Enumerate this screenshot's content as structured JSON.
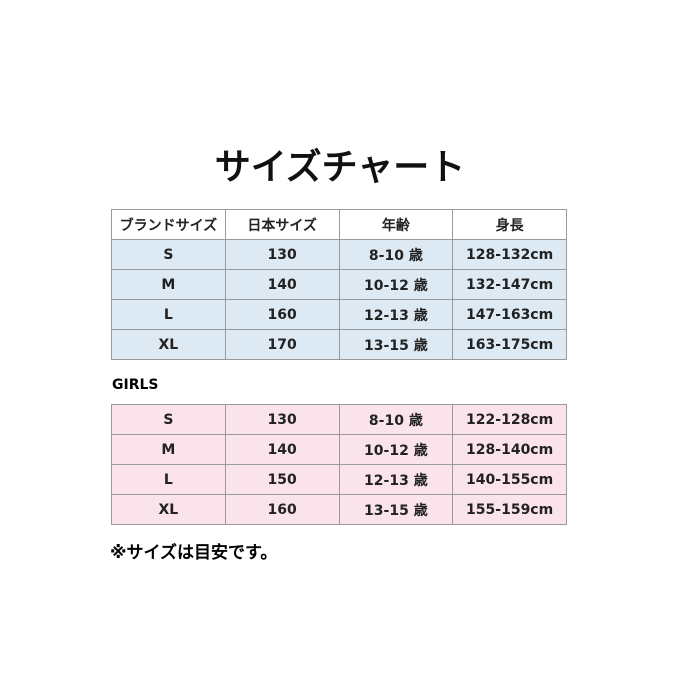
{
  "title": "サイズチャート",
  "table": {
    "header": [
      "ブランドサイズ",
      "日本サイズ",
      "年齢",
      "身長"
    ],
    "rows": [
      [
        "S",
        "130",
        "8-10 歳",
        "128-132cm"
      ],
      [
        "M",
        "140",
        "10-12 歳",
        "132-147cm"
      ],
      [
        "L",
        "160",
        "12-13 歳",
        "147-163cm"
      ],
      [
        "XL",
        "170",
        "13-15 歳",
        "163-175cm"
      ]
    ]
  },
  "girls": {
    "label": "GIRLS",
    "rows": [
      [
        "S",
        "130",
        "8-10 歳",
        "122-128cm"
      ],
      [
        "M",
        "140",
        "10-12 歳",
        "128-140cm"
      ],
      [
        "L",
        "150",
        "12-13 歳",
        "140-155cm"
      ],
      [
        "XL",
        "160",
        "13-15 歳",
        "155-159cm"
      ]
    ]
  },
  "note": "※サイズは目安です。"
}
